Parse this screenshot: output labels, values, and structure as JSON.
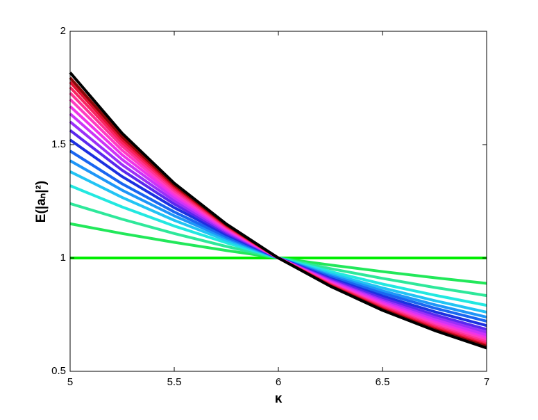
{
  "chart_data": {
    "type": "line",
    "xlabel": "κ",
    "ylabel": "E(|aₙ|²)",
    "x": [
      5,
      5.25,
      5.5,
      5.75,
      6,
      6.25,
      6.5,
      6.75,
      7
    ],
    "xlim": [
      5,
      7
    ],
    "xticks": [
      5,
      5.5,
      6,
      6.5,
      7
    ],
    "ylim": [
      0.5,
      2
    ],
    "yticks": [
      0.5,
      1,
      1.5,
      2
    ],
    "series": [
      {
        "color": "#00ee00",
        "values": [
          1,
          1,
          1,
          1,
          1,
          1,
          1,
          1,
          1
        ]
      },
      {
        "color": "#22e85a",
        "values": [
          1.151,
          1.108,
          1.069,
          1.033,
          1,
          0.969,
          0.94,
          0.913,
          0.888
        ]
      },
      {
        "color": "#2ee89a",
        "values": [
          1.24,
          1.171,
          1.108,
          1.051,
          1,
          0.953,
          0.91,
          0.87,
          0.834
        ]
      },
      {
        "color": "#22e8e0",
        "values": [
          1.319,
          1.225,
          1.141,
          1.067,
          1,
          0.94,
          0.885,
          0.836,
          0.791
        ]
      },
      {
        "color": "#22c4f4",
        "values": [
          1.381,
          1.267,
          1.166,
          1.078,
          1,
          0.93,
          0.868,
          0.812,
          0.761
        ]
      },
      {
        "color": "#1e96f8",
        "values": [
          1.429,
          1.299,
          1.186,
          1.087,
          1,
          0.923,
          0.855,
          0.794,
          0.739
        ]
      },
      {
        "color": "#1a66f0",
        "values": [
          1.472,
          1.327,
          1.203,
          1.094,
          1,
          0.917,
          0.844,
          0.779,
          0.721
        ]
      },
      {
        "color": "#1c30e0",
        "values": [
          1.521,
          1.359,
          1.222,
          1.103,
          1,
          0.91,
          0.832,
          0.763,
          0.702
        ]
      },
      {
        "color": "#5a28ee",
        "values": [
          1.563,
          1.387,
          1.238,
          1.11,
          1,
          0.905,
          0.822,
          0.749,
          0.685
        ]
      },
      {
        "color": "#9a30f8",
        "values": [
          1.601,
          1.411,
          1.252,
          1.116,
          1,
          0.9,
          0.813,
          0.738,
          0.672
        ]
      },
      {
        "color": "#cc34f8",
        "values": [
          1.636,
          1.434,
          1.265,
          1.122,
          1,
          0.896,
          0.806,
          0.728,
          0.66
        ]
      },
      {
        "color": "#f034e8",
        "values": [
          1.669,
          1.455,
          1.277,
          1.127,
          1,
          0.892,
          0.799,
          0.718,
          0.648
        ]
      },
      {
        "color": "#ff3cc4",
        "values": [
          1.7,
          1.475,
          1.288,
          1.132,
          1,
          0.888,
          0.792,
          0.71,
          0.639
        ]
      },
      {
        "color": "#ff3494",
        "values": [
          1.728,
          1.493,
          1.298,
          1.136,
          1,
          0.885,
          0.787,
          0.702,
          0.63
        ]
      },
      {
        "color": "#f82460",
        "values": [
          1.753,
          1.509,
          1.307,
          1.14,
          1,
          0.882,
          0.782,
          0.696,
          0.622
        ]
      },
      {
        "color": "#e01030",
        "values": [
          1.776,
          1.523,
          1.315,
          1.144,
          1,
          0.879,
          0.777,
          0.69,
          0.615
        ]
      },
      {
        "color": "#8a0808",
        "values": [
          1.795,
          1.535,
          1.322,
          1.146,
          1,
          0.877,
          0.773,
          0.685,
          0.61
        ]
      },
      {
        "color": "#000000",
        "values": [
          1.818,
          1.55,
          1.33,
          1.15,
          1,
          0.875,
          0.769,
          0.68,
          0.603
        ]
      }
    ]
  }
}
